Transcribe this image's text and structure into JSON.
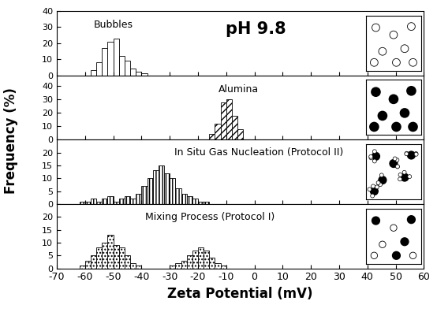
{
  "chart_data": [
    {
      "type": "histogram",
      "title": "pH 9.8",
      "annotation": "Bubbles",
      "y_label": "Frequency (%)",
      "bins": [
        -58,
        -56,
        -54,
        -52,
        -50,
        -48,
        -46,
        -44,
        -42,
        -40,
        -38
      ],
      "counts": [
        3,
        8,
        17,
        21,
        23,
        12,
        9,
        4,
        2,
        1
      ],
      "color": "#ffffff",
      "xlim": [
        -70,
        60
      ],
      "xticks": [
        -70,
        -60,
        -50,
        -40,
        -30,
        -20,
        -10,
        0,
        10,
        20,
        30,
        40,
        50,
        60
      ],
      "ylim": [
        0,
        40
      ],
      "yticks": [
        0,
        10,
        20,
        30,
        40
      ],
      "tick_labels": "y"
    },
    {
      "type": "histogram",
      "annotation": "Alumina",
      "bins": [
        -16,
        -14,
        -12,
        -10,
        -8,
        -6,
        -4
      ],
      "counts": [
        4,
        12,
        28,
        30,
        18,
        8
      ],
      "color": "#ffffff",
      "xlim": [
        -70,
        60
      ],
      "xticks": [
        -70,
        -60,
        -50,
        -40,
        -30,
        -20,
        -10,
        0,
        10,
        20,
        30,
        40,
        50,
        60
      ],
      "ylim": [
        0,
        48
      ],
      "yticks": [
        0,
        10,
        20,
        30,
        40
      ],
      "tick_labels": "y"
    },
    {
      "type": "histogram",
      "annotation": "In Situ Gas Nucleation (Protocol II)",
      "bins": [
        -62,
        -60,
        -58,
        -56,
        -54,
        -52,
        -50,
        -48,
        -46,
        -44,
        -42,
        -40,
        -38,
        -36,
        -34,
        -32,
        -30,
        -28,
        -26,
        -24,
        -22,
        -20,
        -18,
        -16,
        -14
      ],
      "counts": [
        1,
        1,
        2,
        1,
        2,
        3,
        1,
        2,
        3,
        2,
        4,
        7,
        10,
        13,
        15,
        12,
        10,
        6,
        4,
        3,
        2,
        1,
        1,
        0
      ],
      "color": "#ffffff",
      "xlim": [
        -70,
        60
      ],
      "xticks": [
        -70,
        -60,
        -50,
        -40,
        -30,
        -20,
        -10,
        0,
        10,
        20,
        30,
        40,
        50,
        60
      ],
      "ylim": [
        0,
        25
      ],
      "yticks": [
        0,
        5,
        10,
        15,
        20
      ],
      "tick_labels": "y"
    },
    {
      "type": "histogram",
      "annotation": "Mixing Process (Protocol I)",
      "x_label": "Zeta Potential (mV)",
      "bins": [
        -62,
        -60,
        -58,
        -56,
        -54,
        -52,
        -50,
        -48,
        -46,
        -44,
        -42,
        -40,
        -38,
        -36,
        -34,
        -32,
        -30,
        -28,
        -26,
        -24,
        -22,
        -20,
        -18,
        -16,
        -14,
        -12,
        -10,
        -8
      ],
      "counts": [
        1,
        3,
        5,
        8,
        10,
        13,
        9,
        8,
        5,
        2,
        1,
        0,
        0,
        0,
        0,
        0,
        1,
        2,
        3,
        5,
        7,
        8,
        7,
        4,
        2,
        1,
        0
      ],
      "color": "#ffffff",
      "xlim": [
        -70,
        60
      ],
      "xticks": [
        -70,
        -60,
        -50,
        -40,
        -30,
        -20,
        -10,
        0,
        10,
        20,
        30,
        40,
        50,
        60
      ],
      "ylim": [
        0,
        25
      ],
      "yticks": [
        0,
        5,
        10,
        15,
        20
      ],
      "tick_labels": true
    }
  ]
}
